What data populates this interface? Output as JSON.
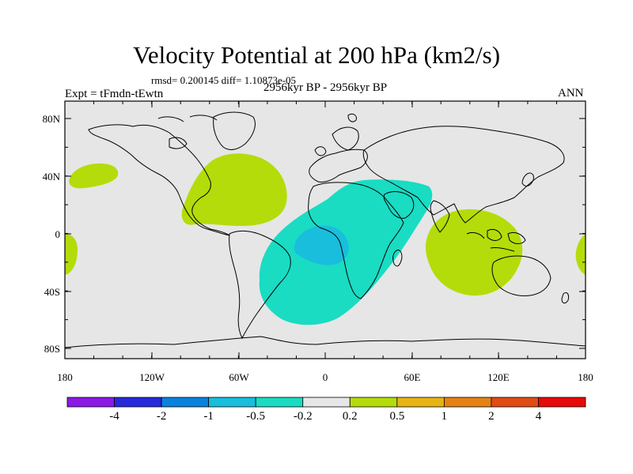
{
  "title": "Velocity Potential at 200 hPa (km2/s)",
  "stats": {
    "text": "rmsd= 0.200145 diff= 1.10873e-05"
  },
  "experiment": "Expt = tFmdn-tEwtn",
  "period": "2956kyr BP - 2956kyr BP",
  "season": "ANN",
  "axes": {
    "x_labels": [
      "180",
      "120W",
      "60W",
      "0",
      "60E",
      "120E",
      "180"
    ],
    "y_labels": [
      "80N",
      "40N",
      "0",
      "40S",
      "80S"
    ]
  },
  "colorbar": {
    "labels": [
      "-4",
      "-2",
      "-1",
      "-0.5",
      "-0.2",
      "0.2",
      "0.5",
      "1",
      "2",
      "4"
    ],
    "colors": [
      "#8a19e6",
      "#2828dc",
      "#0a82dc",
      "#19bedc",
      "#19dcc3",
      "#e6e6e6",
      "#b4dc0a",
      "#e6b414",
      "#e68214",
      "#e14b14",
      "#e60a0a"
    ]
  },
  "regions": [
    {
      "name": "central-pacific-positive-anomaly",
      "level": "0.2 to 0.5"
    },
    {
      "name": "north-atlantic-positive-anomaly",
      "level": "0.2 to 0.5"
    },
    {
      "name": "maritime-continent-positive-anomaly",
      "level": "0.2 to 0.5"
    },
    {
      "name": "east-pacific-positive-anomaly",
      "level": "0.2 to 0.5"
    },
    {
      "name": "atlantic-africa-negative-anomaly",
      "level": "-0.5 to -0.2"
    },
    {
      "name": "south-atlantic-core-negative-anomaly",
      "level": "-1 to -0.5"
    }
  ]
}
